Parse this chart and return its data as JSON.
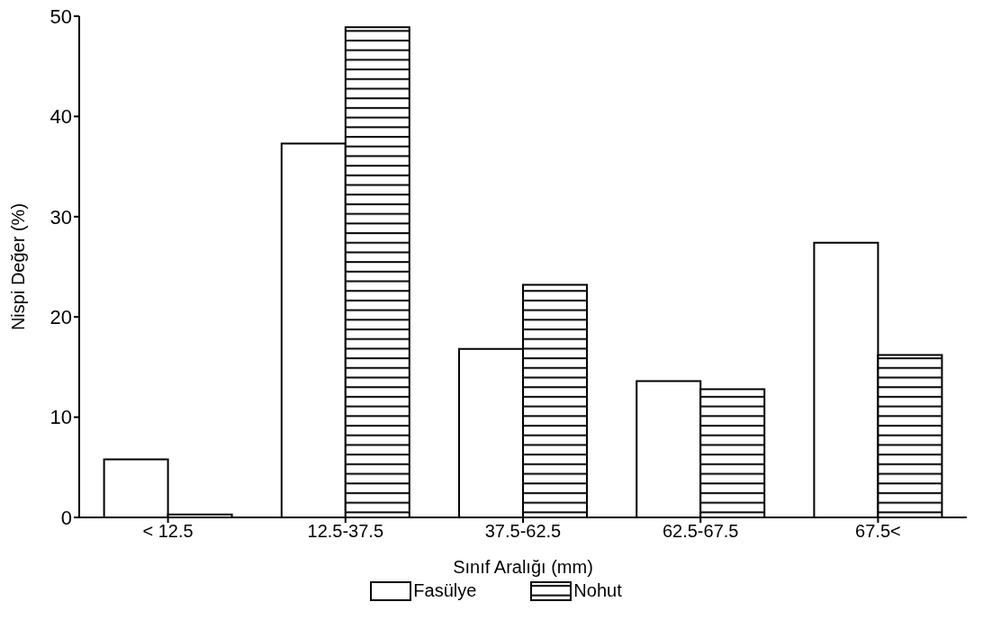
{
  "chart_data": {
    "type": "bar",
    "xlabel": "Sınıf Aralığı (mm)",
    "ylabel": "Nispi Değer (%)",
    "categories": [
      "< 12.5",
      "12.5-37.5",
      "37.5-62.5",
      "62.5-67.5",
      "67.5<"
    ],
    "series": [
      {
        "name": "Fasülye",
        "color": "#ffffff",
        "values": [
          5.8,
          37.3,
          16.8,
          13.6,
          27.4
        ]
      },
      {
        "name": "Nohut",
        "color": "#000000",
        "values": [
          0.3,
          48.9,
          23.2,
          12.8,
          16.2
        ]
      }
    ],
    "ylim": [
      0,
      50
    ],
    "yticks": [
      0,
      10,
      20,
      30,
      40,
      50
    ],
    "grid": false,
    "legend": "bottom"
  }
}
